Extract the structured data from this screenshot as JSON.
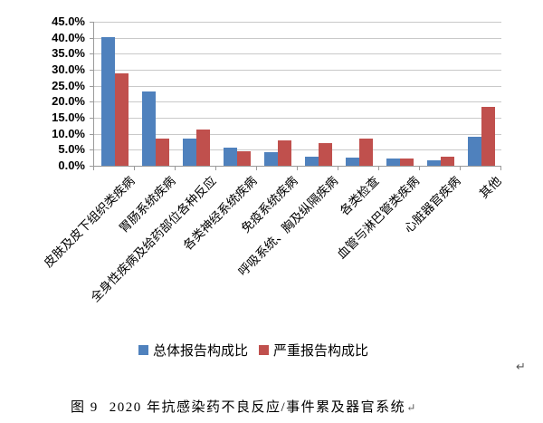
{
  "chart_data": {
    "type": "bar",
    "categories": [
      "皮肤及皮下组织类疾病",
      "胃肠系统疾病",
      "全身性疾病及给药部位各种反应",
      "各类神经系统疾病",
      "免疫系统疾病",
      "呼吸系统、胸及纵隔疾病",
      "各类检查",
      "血管与淋巴管类疾病",
      "心脏器官疾病",
      "其他"
    ],
    "series": [
      {
        "name": "总体报告构成比",
        "color": "#4F81BD",
        "values": [
          40.3,
          23.2,
          8.5,
          5.6,
          4.2,
          2.9,
          2.5,
          2.2,
          1.8,
          9.1
        ]
      },
      {
        "name": "严重报告构成比",
        "color": "#C0504D",
        "values": [
          28.9,
          8.5,
          11.2,
          4.4,
          7.9,
          7.2,
          8.5,
          2.2,
          2.9,
          18.5
        ]
      }
    ],
    "title": "",
    "xlabel": "",
    "ylabel": "",
    "ylim": [
      0,
      45
    ],
    "ytick_step": 5,
    "ytick_labels": [
      "0.0%",
      "5.0%",
      "10.0%",
      "15.0%",
      "20.0%",
      "25.0%",
      "30.0%",
      "35.0%",
      "40.0%",
      "45.0%"
    ],
    "grid": true,
    "legend_position": "bottom"
  },
  "colors": {
    "series1": "#4F81BD",
    "series2": "#C0504D",
    "gridline": "#c9c9c9",
    "axis": "#9a9a9a"
  },
  "caption": {
    "label": "图 9",
    "title": "2020 年抗感染药不良反应/事件累及器官系统",
    "return_mark": "↵"
  },
  "page": {
    "return_mark": "↵"
  }
}
